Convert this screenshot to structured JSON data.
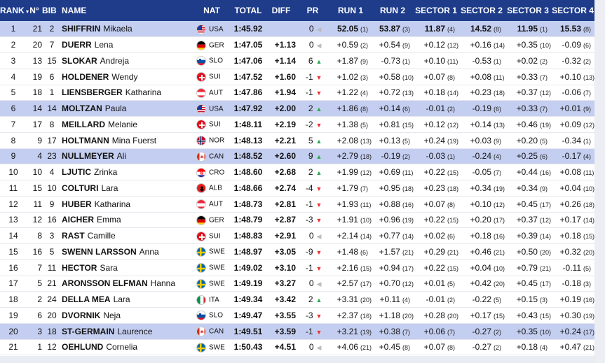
{
  "headers": {
    "rank": "RANK",
    "num": "N°",
    "bib": "BIB",
    "name": "NAME",
    "nat": "NAT",
    "total": "TOTAL",
    "diff": "DIFF",
    "pr": "PR",
    "run1": "RUN 1",
    "run2": "RUN 2",
    "s1": "SECTOR 1",
    "s2": "SECTOR 2",
    "s3": "SECTOR 3",
    "s4": "SECTOR 4"
  },
  "colors": {
    "header_bg": "#1e3c8a",
    "highlight_row": "#c4cef0",
    "up": "#2fa84f",
    "down": "#e33333"
  },
  "rows": [
    {
      "rank": "1",
      "num": "21",
      "bib": "2",
      "last": "SHIFFRIN",
      "first": "Mikaela",
      "nat": "USA",
      "flag": "usa",
      "total": "1:45.92",
      "diff": "",
      "pr": "0",
      "pr_dir": "eq",
      "run1": "52.05",
      "run1_rank": "(1)",
      "run2": "53.87",
      "run2_rank": "(3)",
      "s1": "11.87",
      "s1_rank": "(4)",
      "s2": "14.52",
      "s2_rank": "(8)",
      "s3": "11.95",
      "s3_rank": "(1)",
      "s4": "15.53",
      "s4_rank": "(8)",
      "hl": true,
      "bold_times": true
    },
    {
      "rank": "2",
      "num": "20",
      "bib": "7",
      "last": "DUERR",
      "first": "Lena",
      "nat": "GER",
      "flag": "ger",
      "total": "1:47.05",
      "diff": "+1.13",
      "pr": "0",
      "pr_dir": "eq",
      "run1": "+0.59",
      "run1_rank": "(2)",
      "run2": "+0.54",
      "run2_rank": "(9)",
      "s1": "+0.12",
      "s1_rank": "(12)",
      "s2": "+0.16",
      "s2_rank": "(14)",
      "s3": "+0.35",
      "s3_rank": "(10)",
      "s4": "-0.09",
      "s4_rank": "(6)"
    },
    {
      "rank": "3",
      "num": "13",
      "bib": "15",
      "last": "SLOKAR",
      "first": "Andreja",
      "nat": "SLO",
      "flag": "slo",
      "total": "1:47.06",
      "diff": "+1.14",
      "pr": "6",
      "pr_dir": "up",
      "run1": "+1.87",
      "run1_rank": "(9)",
      "run2": "-0.73",
      "run2_rank": "(1)",
      "s1": "+0.10",
      "s1_rank": "(11)",
      "s2": "-0.53",
      "s2_rank": "(1)",
      "s3": "+0.02",
      "s3_rank": "(2)",
      "s4": "-0.32",
      "s4_rank": "(2)"
    },
    {
      "rank": "4",
      "num": "19",
      "bib": "6",
      "last": "HOLDENER",
      "first": "Wendy",
      "nat": "SUI",
      "flag": "sui",
      "total": "1:47.52",
      "diff": "+1.60",
      "pr": "-1",
      "pr_dir": "dn",
      "run1": "+1.02",
      "run1_rank": "(3)",
      "run2": "+0.58",
      "run2_rank": "(10)",
      "s1": "+0.07",
      "s1_rank": "(8)",
      "s2": "+0.08",
      "s2_rank": "(11)",
      "s3": "+0.33",
      "s3_rank": "(7)",
      "s4": "+0.10",
      "s4_rank": "(13)"
    },
    {
      "rank": "5",
      "num": "18",
      "bib": "1",
      "last": "LIENSBERGER",
      "first": "Katharina",
      "nat": "AUT",
      "flag": "aut",
      "total": "1:47.86",
      "diff": "+1.94",
      "pr": "-1",
      "pr_dir": "dn",
      "run1": "+1.22",
      "run1_rank": "(4)",
      "run2": "+0.72",
      "run2_rank": "(13)",
      "s1": "+0.18",
      "s1_rank": "(14)",
      "s2": "+0.23",
      "s2_rank": "(18)",
      "s3": "+0.37",
      "s3_rank": "(12)",
      "s4": "-0.06",
      "s4_rank": "(7)"
    },
    {
      "rank": "6",
      "num": "14",
      "bib": "14",
      "last": "MOLTZAN",
      "first": "Paula",
      "nat": "USA",
      "flag": "usa",
      "total": "1:47.92",
      "diff": "+2.00",
      "pr": "2",
      "pr_dir": "up",
      "run1": "+1.86",
      "run1_rank": "(8)",
      "run2": "+0.14",
      "run2_rank": "(6)",
      "s1": "-0.01",
      "s1_rank": "(2)",
      "s2": "-0.19",
      "s2_rank": "(6)",
      "s3": "+0.33",
      "s3_rank": "(7)",
      "s4": "+0.01",
      "s4_rank": "(9)",
      "hl": true
    },
    {
      "rank": "7",
      "num": "17",
      "bib": "8",
      "last": "MEILLARD",
      "first": "Melanie",
      "nat": "SUI",
      "flag": "sui",
      "total": "1:48.11",
      "diff": "+2.19",
      "pr": "-2",
      "pr_dir": "dn",
      "run1": "+1.38",
      "run1_rank": "(5)",
      "run2": "+0.81",
      "run2_rank": "(15)",
      "s1": "+0.12",
      "s1_rank": "(12)",
      "s2": "+0.14",
      "s2_rank": "(13)",
      "s3": "+0.46",
      "s3_rank": "(19)",
      "s4": "+0.09",
      "s4_rank": "(12)"
    },
    {
      "rank": "8",
      "num": "9",
      "bib": "17",
      "last": "HOLTMANN",
      "first": "Mina Fuerst",
      "nat": "NOR",
      "flag": "nor",
      "total": "1:48.13",
      "diff": "+2.21",
      "pr": "5",
      "pr_dir": "up",
      "run1": "+2.08",
      "run1_rank": "(13)",
      "run2": "+0.13",
      "run2_rank": "(5)",
      "s1": "+0.24",
      "s1_rank": "(19)",
      "s2": "+0.03",
      "s2_rank": "(9)",
      "s3": "+0.20",
      "s3_rank": "(5)",
      "s4": "-0.34",
      "s4_rank": "(1)"
    },
    {
      "rank": "9",
      "num": "4",
      "bib": "23",
      "last": "NULLMEYER",
      "first": "Ali",
      "nat": "CAN",
      "flag": "can",
      "total": "1:48.52",
      "diff": "+2.60",
      "pr": "9",
      "pr_dir": "up",
      "run1": "+2.79",
      "run1_rank": "(18)",
      "run2": "-0.19",
      "run2_rank": "(2)",
      "s1": "-0.03",
      "s1_rank": "(1)",
      "s2": "-0.24",
      "s2_rank": "(4)",
      "s3": "+0.25",
      "s3_rank": "(6)",
      "s4": "-0.17",
      "s4_rank": "(4)",
      "hl": true
    },
    {
      "rank": "10",
      "num": "10",
      "bib": "4",
      "last": "LJUTIC",
      "first": "Zrinka",
      "nat": "CRO",
      "flag": "cro",
      "total": "1:48.60",
      "diff": "+2.68",
      "pr": "2",
      "pr_dir": "up",
      "run1": "+1.99",
      "run1_rank": "(12)",
      "run2": "+0.69",
      "run2_rank": "(11)",
      "s1": "+0.22",
      "s1_rank": "(15)",
      "s2": "-0.05",
      "s2_rank": "(7)",
      "s3": "+0.44",
      "s3_rank": "(16)",
      "s4": "+0.08",
      "s4_rank": "(11)"
    },
    {
      "rank": "11",
      "num": "15",
      "bib": "10",
      "last": "COLTURI",
      "first": "Lara",
      "nat": "ALB",
      "flag": "alb",
      "total": "1:48.66",
      "diff": "+2.74",
      "pr": "-4",
      "pr_dir": "dn",
      "run1": "+1.79",
      "run1_rank": "(7)",
      "run2": "+0.95",
      "run2_rank": "(18)",
      "s1": "+0.23",
      "s1_rank": "(18)",
      "s2": "+0.34",
      "s2_rank": "(19)",
      "s3": "+0.34",
      "s3_rank": "(9)",
      "s4": "+0.04",
      "s4_rank": "(10)"
    },
    {
      "rank": "12",
      "num": "11",
      "bib": "9",
      "last": "HUBER",
      "first": "Katharina",
      "nat": "AUT",
      "flag": "aut",
      "total": "1:48.73",
      "diff": "+2.81",
      "pr": "-1",
      "pr_dir": "dn",
      "run1": "+1.93",
      "run1_rank": "(11)",
      "run2": "+0.88",
      "run2_rank": "(16)",
      "s1": "+0.07",
      "s1_rank": "(8)",
      "s2": "+0.10",
      "s2_rank": "(12)",
      "s3": "+0.45",
      "s3_rank": "(17)",
      "s4": "+0.26",
      "s4_rank": "(18)"
    },
    {
      "rank": "13",
      "num": "12",
      "bib": "16",
      "last": "AICHER",
      "first": "Emma",
      "nat": "GER",
      "flag": "ger",
      "total": "1:48.79",
      "diff": "+2.87",
      "pr": "-3",
      "pr_dir": "dn",
      "run1": "+1.91",
      "run1_rank": "(10)",
      "run2": "+0.96",
      "run2_rank": "(19)",
      "s1": "+0.22",
      "s1_rank": "(15)",
      "s2": "+0.20",
      "s2_rank": "(17)",
      "s3": "+0.37",
      "s3_rank": "(12)",
      "s4": "+0.17",
      "s4_rank": "(14)"
    },
    {
      "rank": "14",
      "num": "8",
      "bib": "3",
      "last": "RAST",
      "first": "Camille",
      "nat": "SUI",
      "flag": "sui",
      "total": "1:48.83",
      "diff": "+2.91",
      "pr": "0",
      "pr_dir": "eq",
      "run1": "+2.14",
      "run1_rank": "(14)",
      "run2": "+0.77",
      "run2_rank": "(14)",
      "s1": "+0.02",
      "s1_rank": "(6)",
      "s2": "+0.18",
      "s2_rank": "(16)",
      "s3": "+0.39",
      "s3_rank": "(14)",
      "s4": "+0.18",
      "s4_rank": "(15)"
    },
    {
      "rank": "15",
      "num": "16",
      "bib": "5",
      "last": "SWENN LARSSON",
      "first": "Anna",
      "nat": "SWE",
      "flag": "swe",
      "total": "1:48.97",
      "diff": "+3.05",
      "pr": "-9",
      "pr_dir": "dn",
      "run1": "+1.48",
      "run1_rank": "(6)",
      "run2": "+1.57",
      "run2_rank": "(21)",
      "s1": "+0.29",
      "s1_rank": "(21)",
      "s2": "+0.46",
      "s2_rank": "(21)",
      "s3": "+0.50",
      "s3_rank": "(20)",
      "s4": "+0.32",
      "s4_rank": "(20)"
    },
    {
      "rank": "16",
      "num": "7",
      "bib": "11",
      "last": "HECTOR",
      "first": "Sara",
      "nat": "SWE",
      "flag": "swe",
      "total": "1:49.02",
      "diff": "+3.10",
      "pr": "-1",
      "pr_dir": "dn",
      "run1": "+2.16",
      "run1_rank": "(15)",
      "run2": "+0.94",
      "run2_rank": "(17)",
      "s1": "+0.22",
      "s1_rank": "(15)",
      "s2": "+0.04",
      "s2_rank": "(10)",
      "s3": "+0.79",
      "s3_rank": "(21)",
      "s4": "-0.11",
      "s4_rank": "(5)"
    },
    {
      "rank": "17",
      "num": "5",
      "bib": "21",
      "last": "ARONSSON ELFMAN",
      "first": "Hanna",
      "nat": "SWE",
      "flag": "swe",
      "total": "1:49.19",
      "diff": "+3.27",
      "pr": "0",
      "pr_dir": "eq",
      "run1": "+2.57",
      "run1_rank": "(17)",
      "run2": "+0.70",
      "run2_rank": "(12)",
      "s1": "+0.01",
      "s1_rank": "(5)",
      "s2": "+0.42",
      "s2_rank": "(20)",
      "s3": "+0.45",
      "s3_rank": "(17)",
      "s4": "-0.18",
      "s4_rank": "(3)"
    },
    {
      "rank": "18",
      "num": "2",
      "bib": "24",
      "last": "DELLA MEA",
      "first": "Lara",
      "nat": "ITA",
      "flag": "ita",
      "total": "1:49.34",
      "diff": "+3.42",
      "pr": "2",
      "pr_dir": "up",
      "run1": "+3.31",
      "run1_rank": "(20)",
      "run2": "+0.11",
      "run2_rank": "(4)",
      "s1": "-0.01",
      "s1_rank": "(2)",
      "s2": "-0.22",
      "s2_rank": "(5)",
      "s3": "+0.15",
      "s3_rank": "(3)",
      "s4": "+0.19",
      "s4_rank": "(16)"
    },
    {
      "rank": "19",
      "num": "6",
      "bib": "20",
      "last": "DVORNIK",
      "first": "Neja",
      "nat": "SLO",
      "flag": "slo",
      "total": "1:49.47",
      "diff": "+3.55",
      "pr": "-3",
      "pr_dir": "dn",
      "run1": "+2.37",
      "run1_rank": "(16)",
      "run2": "+1.18",
      "run2_rank": "(20)",
      "s1": "+0.28",
      "s1_rank": "(20)",
      "s2": "+0.17",
      "s2_rank": "(15)",
      "s3": "+0.43",
      "s3_rank": "(15)",
      "s4": "+0.30",
      "s4_rank": "(19)"
    },
    {
      "rank": "20",
      "num": "3",
      "bib": "18",
      "last": "ST-GERMAIN",
      "first": "Laurence",
      "nat": "CAN",
      "flag": "can",
      "total": "1:49.51",
      "diff": "+3.59",
      "pr": "-1",
      "pr_dir": "dn",
      "run1": "+3.21",
      "run1_rank": "(19)",
      "run2": "+0.38",
      "run2_rank": "(7)",
      "s1": "+0.06",
      "s1_rank": "(7)",
      "s2": "-0.27",
      "s2_rank": "(2)",
      "s3": "+0.35",
      "s3_rank": "(10)",
      "s4": "+0.24",
      "s4_rank": "(17)",
      "hl": true
    },
    {
      "rank": "21",
      "num": "1",
      "bib": "12",
      "last": "OEHLUND",
      "first": "Cornelia",
      "nat": "SWE",
      "flag": "swe",
      "total": "1:50.43",
      "diff": "+4.51",
      "pr": "0",
      "pr_dir": "eq",
      "run1": "+4.06",
      "run1_rank": "(21)",
      "run2": "+0.45",
      "run2_rank": "(8)",
      "s1": "+0.07",
      "s1_rank": "(8)",
      "s2": "-0.27",
      "s2_rank": "(2)",
      "s3": "+0.18",
      "s3_rank": "(4)",
      "s4": "+0.47",
      "s4_rank": "(21)"
    }
  ]
}
